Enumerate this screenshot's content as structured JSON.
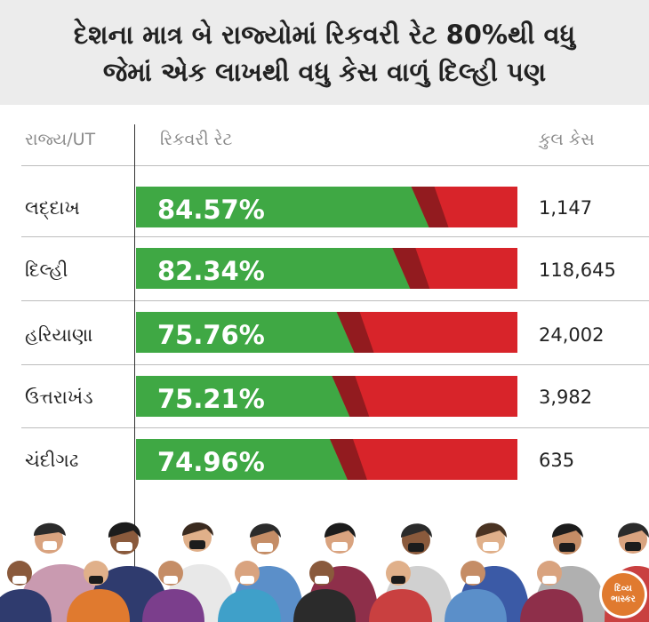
{
  "header": {
    "title_line1": "દેશના માત્ર બે રાજ્યોમાં રિકવરી રેટ 80%થી વધુ",
    "title_line2": "જેમાં એક લાખથી વધુ કેસ વાળું દિલ્હી પણ"
  },
  "columns": {
    "state": "રાજ્ય/UT",
    "rate": "રિકવરી રેટ",
    "cases": "કુલ કેસ"
  },
  "chart_data": {
    "type": "bar",
    "categories": [
      "લદ્દાખ",
      "દિલ્હી",
      "હરિયાણા",
      "ઉત્તરાખંડ",
      "ચંદીગઢ"
    ],
    "values": [
      84.57,
      82.34,
      75.76,
      75.21,
      74.96
    ],
    "value_labels": [
      "84.57%",
      "82.34%",
      "75.76%",
      "75.21%",
      "74.96%"
    ],
    "cases": [
      "1,147",
      "118,645",
      "24,002",
      "3,982",
      "635"
    ],
    "ylim": [
      0,
      100
    ],
    "colors": {
      "recovered": "#3fa844",
      "remaining": "#d8242a"
    }
  },
  "logo": {
    "line1": "દિવ્ય",
    "line2": "ભાસ્કર"
  }
}
